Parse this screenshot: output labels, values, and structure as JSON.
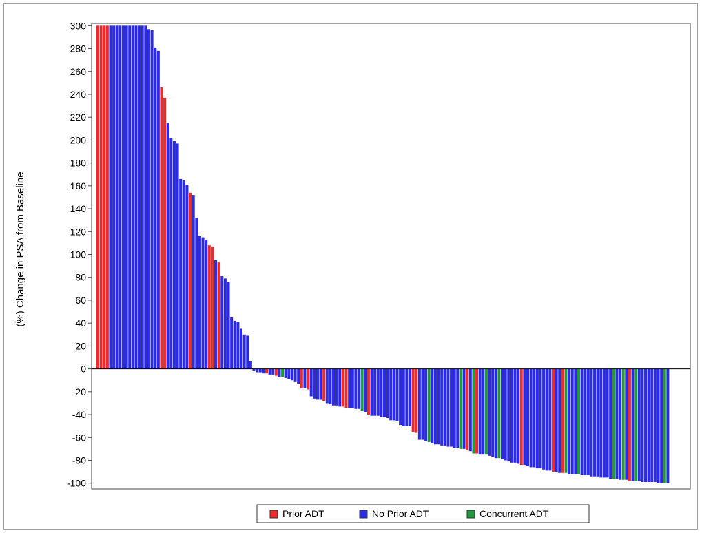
{
  "chart_data": {
    "type": "bar",
    "ylabel": "(%) Change in PSA from Baseline",
    "ylim": [
      -105,
      302
    ],
    "yticks": [
      -100,
      -80,
      -60,
      -40,
      -20,
      0,
      20,
      40,
      60,
      80,
      100,
      120,
      140,
      160,
      180,
      200,
      220,
      240,
      260,
      280,
      300
    ],
    "grid": false,
    "legend_position": "bottom-center",
    "series_colors": {
      "Prior ADT": "#ee2a2a",
      "No Prior ADT": "#2a2ae8",
      "Concurrent ADT": "#1f9a3a"
    },
    "legend": [
      {
        "name": "Prior ADT",
        "color": "#ee2a2a"
      },
      {
        "name": "No Prior ADT",
        "color": "#2a2ae8"
      },
      {
        "name": "Concurrent ADT",
        "color": "#1f9a3a"
      }
    ],
    "bars": [
      {
        "v": 300,
        "g": "Prior ADT"
      },
      {
        "v": 300,
        "g": "Prior ADT"
      },
      {
        "v": 300,
        "g": "Prior ADT"
      },
      {
        "v": 300,
        "g": "Prior ADT"
      },
      {
        "v": 300,
        "g": "No Prior ADT"
      },
      {
        "v": 300,
        "g": "No Prior ADT"
      },
      {
        "v": 300,
        "g": "No Prior ADT"
      },
      {
        "v": 300,
        "g": "No Prior ADT"
      },
      {
        "v": 300,
        "g": "No Prior ADT"
      },
      {
        "v": 300,
        "g": "No Prior ADT"
      },
      {
        "v": 300,
        "g": "No Prior ADT"
      },
      {
        "v": 300,
        "g": "No Prior ADT"
      },
      {
        "v": 300,
        "g": "No Prior ADT"
      },
      {
        "v": 300,
        "g": "No Prior ADT"
      },
      {
        "v": 300,
        "g": "No Prior ADT"
      },
      {
        "v": 300,
        "g": "No Prior ADT"
      },
      {
        "v": 297,
        "g": "No Prior ADT"
      },
      {
        "v": 296,
        "g": "No Prior ADT"
      },
      {
        "v": 281,
        "g": "No Prior ADT"
      },
      {
        "v": 278,
        "g": "No Prior ADT"
      },
      {
        "v": 246,
        "g": "Prior ADT"
      },
      {
        "v": 237,
        "g": "Prior ADT"
      },
      {
        "v": 215,
        "g": "No Prior ADT"
      },
      {
        "v": 202,
        "g": "No Prior ADT"
      },
      {
        "v": 199,
        "g": "No Prior ADT"
      },
      {
        "v": 197,
        "g": "No Prior ADT"
      },
      {
        "v": 166,
        "g": "No Prior ADT"
      },
      {
        "v": 165,
        "g": "No Prior ADT"
      },
      {
        "v": 161,
        "g": "No Prior ADT"
      },
      {
        "v": 154,
        "g": "Prior ADT"
      },
      {
        "v": 152,
        "g": "No Prior ADT"
      },
      {
        "v": 132,
        "g": "No Prior ADT"
      },
      {
        "v": 116,
        "g": "No Prior ADT"
      },
      {
        "v": 115,
        "g": "No Prior ADT"
      },
      {
        "v": 113,
        "g": "No Prior ADT"
      },
      {
        "v": 108,
        "g": "Prior ADT"
      },
      {
        "v": 107,
        "g": "Prior ADT"
      },
      {
        "v": 95,
        "g": "No Prior ADT"
      },
      {
        "v": 93,
        "g": "Prior ADT"
      },
      {
        "v": 81,
        "g": "No Prior ADT"
      },
      {
        "v": 79,
        "g": "No Prior ADT"
      },
      {
        "v": 76,
        "g": "No Prior ADT"
      },
      {
        "v": 45,
        "g": "No Prior ADT"
      },
      {
        "v": 42,
        "g": "No Prior ADT"
      },
      {
        "v": 41,
        "g": "No Prior ADT"
      },
      {
        "v": 35,
        "g": "No Prior ADT"
      },
      {
        "v": 30,
        "g": "No Prior ADT"
      },
      {
        "v": 29,
        "g": "No Prior ADT"
      },
      {
        "v": 7,
        "g": "No Prior ADT"
      },
      {
        "v": -2,
        "g": "No Prior ADT"
      },
      {
        "v": -3,
        "g": "No Prior ADT"
      },
      {
        "v": -3,
        "g": "No Prior ADT"
      },
      {
        "v": -4,
        "g": "No Prior ADT"
      },
      {
        "v": -4,
        "g": "Prior ADT"
      },
      {
        "v": -5,
        "g": "No Prior ADT"
      },
      {
        "v": -5,
        "g": "No Prior ADT"
      },
      {
        "v": -6,
        "g": "Prior ADT"
      },
      {
        "v": -7,
        "g": "No Prior ADT"
      },
      {
        "v": -7,
        "g": "Concurrent ADT"
      },
      {
        "v": -8,
        "g": "No Prior ADT"
      },
      {
        "v": -9,
        "g": "No Prior ADT"
      },
      {
        "v": -10,
        "g": "No Prior ADT"
      },
      {
        "v": -11,
        "g": "No Prior ADT"
      },
      {
        "v": -13,
        "g": "No Prior ADT"
      },
      {
        "v": -17,
        "g": "Prior ADT"
      },
      {
        "v": -17,
        "g": "No Prior ADT"
      },
      {
        "v": -18,
        "g": "Prior ADT"
      },
      {
        "v": -24,
        "g": "No Prior ADT"
      },
      {
        "v": -26,
        "g": "No Prior ADT"
      },
      {
        "v": -27,
        "g": "No Prior ADT"
      },
      {
        "v": -27,
        "g": "No Prior ADT"
      },
      {
        "v": -28,
        "g": "Prior ADT"
      },
      {
        "v": -30,
        "g": "No Prior ADT"
      },
      {
        "v": -31,
        "g": "No Prior ADT"
      },
      {
        "v": -32,
        "g": "No Prior ADT"
      },
      {
        "v": -32,
        "g": "No Prior ADT"
      },
      {
        "v": -33,
        "g": "No Prior ADT"
      },
      {
        "v": -33,
        "g": "Prior ADT"
      },
      {
        "v": -34,
        "g": "Prior ADT"
      },
      {
        "v": -34,
        "g": "No Prior ADT"
      },
      {
        "v": -34,
        "g": "No Prior ADT"
      },
      {
        "v": -35,
        "g": "No Prior ADT"
      },
      {
        "v": -35,
        "g": "No Prior ADT"
      },
      {
        "v": -37,
        "g": "Concurrent ADT"
      },
      {
        "v": -38,
        "g": "No Prior ADT"
      },
      {
        "v": -40,
        "g": "Prior ADT"
      },
      {
        "v": -41,
        "g": "No Prior ADT"
      },
      {
        "v": -41,
        "g": "No Prior ADT"
      },
      {
        "v": -41,
        "g": "No Prior ADT"
      },
      {
        "v": -42,
        "g": "No Prior ADT"
      },
      {
        "v": -42,
        "g": "No Prior ADT"
      },
      {
        "v": -43,
        "g": "No Prior ADT"
      },
      {
        "v": -45,
        "g": "No Prior ADT"
      },
      {
        "v": -45,
        "g": "No Prior ADT"
      },
      {
        "v": -46,
        "g": "No Prior ADT"
      },
      {
        "v": -49,
        "g": "No Prior ADT"
      },
      {
        "v": -50,
        "g": "No Prior ADT"
      },
      {
        "v": -50,
        "g": "No Prior ADT"
      },
      {
        "v": -50,
        "g": "No Prior ADT"
      },
      {
        "v": -55,
        "g": "Prior ADT"
      },
      {
        "v": -56,
        "g": "Prior ADT"
      },
      {
        "v": -62,
        "g": "No Prior ADT"
      },
      {
        "v": -62,
        "g": "No Prior ADT"
      },
      {
        "v": -63,
        "g": "No Prior ADT"
      },
      {
        "v": -64,
        "g": "Concurrent ADT"
      },
      {
        "v": -65,
        "g": "No Prior ADT"
      },
      {
        "v": -66,
        "g": "No Prior ADT"
      },
      {
        "v": -66,
        "g": "No Prior ADT"
      },
      {
        "v": -67,
        "g": "No Prior ADT"
      },
      {
        "v": -67,
        "g": "No Prior ADT"
      },
      {
        "v": -68,
        "g": "No Prior ADT"
      },
      {
        "v": -68,
        "g": "No Prior ADT"
      },
      {
        "v": -69,
        "g": "No Prior ADT"
      },
      {
        "v": -69,
        "g": "No Prior ADT"
      },
      {
        "v": -70,
        "g": "Concurrent ADT"
      },
      {
        "v": -70,
        "g": "No Prior ADT"
      },
      {
        "v": -71,
        "g": "Prior ADT"
      },
      {
        "v": -72,
        "g": "No Prior ADT"
      },
      {
        "v": -74,
        "g": "Concurrent ADT"
      },
      {
        "v": -74,
        "g": "Prior ADT"
      },
      {
        "v": -75,
        "g": "No Prior ADT"
      },
      {
        "v": -75,
        "g": "No Prior ADT"
      },
      {
        "v": -75,
        "g": "Concurrent ADT"
      },
      {
        "v": -76,
        "g": "No Prior ADT"
      },
      {
        "v": -77,
        "g": "No Prior ADT"
      },
      {
        "v": -78,
        "g": "No Prior ADT"
      },
      {
        "v": -78,
        "g": "Concurrent ADT"
      },
      {
        "v": -79,
        "g": "No Prior ADT"
      },
      {
        "v": -80,
        "g": "No Prior ADT"
      },
      {
        "v": -81,
        "g": "No Prior ADT"
      },
      {
        "v": -82,
        "g": "No Prior ADT"
      },
      {
        "v": -82,
        "g": "No Prior ADT"
      },
      {
        "v": -83,
        "g": "No Prior ADT"
      },
      {
        "v": -84,
        "g": "Prior ADT"
      },
      {
        "v": -84,
        "g": "No Prior ADT"
      },
      {
        "v": -85,
        "g": "No Prior ADT"
      },
      {
        "v": -86,
        "g": "No Prior ADT"
      },
      {
        "v": -86,
        "g": "No Prior ADT"
      },
      {
        "v": -87,
        "g": "No Prior ADT"
      },
      {
        "v": -87,
        "g": "No Prior ADT"
      },
      {
        "v": -88,
        "g": "No Prior ADT"
      },
      {
        "v": -89,
        "g": "No Prior ADT"
      },
      {
        "v": -89,
        "g": "No Prior ADT"
      },
      {
        "v": -90,
        "g": "Prior ADT"
      },
      {
        "v": -90,
        "g": "No Prior ADT"
      },
      {
        "v": -91,
        "g": "No Prior ADT"
      },
      {
        "v": -91,
        "g": "Prior ADT"
      },
      {
        "v": -91,
        "g": "Concurrent ADT"
      },
      {
        "v": -92,
        "g": "No Prior ADT"
      },
      {
        "v": -92,
        "g": "No Prior ADT"
      },
      {
        "v": -92,
        "g": "No Prior ADT"
      },
      {
        "v": -92,
        "g": "Concurrent ADT"
      },
      {
        "v": -93,
        "g": "No Prior ADT"
      },
      {
        "v": -93,
        "g": "No Prior ADT"
      },
      {
        "v": -93,
        "g": "No Prior ADT"
      },
      {
        "v": -94,
        "g": "No Prior ADT"
      },
      {
        "v": -94,
        "g": "No Prior ADT"
      },
      {
        "v": -94,
        "g": "No Prior ADT"
      },
      {
        "v": -95,
        "g": "No Prior ADT"
      },
      {
        "v": -95,
        "g": "No Prior ADT"
      },
      {
        "v": -95,
        "g": "No Prior ADT"
      },
      {
        "v": -96,
        "g": "No Prior ADT"
      },
      {
        "v": -96,
        "g": "Concurrent ADT"
      },
      {
        "v": -96,
        "g": "No Prior ADT"
      },
      {
        "v": -97,
        "g": "No Prior ADT"
      },
      {
        "v": -97,
        "g": "Concurrent ADT"
      },
      {
        "v": -97,
        "g": "No Prior ADT"
      },
      {
        "v": -98,
        "g": "Prior ADT"
      },
      {
        "v": -98,
        "g": "No Prior ADT"
      },
      {
        "v": -98,
        "g": "Concurrent ADT"
      },
      {
        "v": -98,
        "g": "No Prior ADT"
      },
      {
        "v": -99,
        "g": "No Prior ADT"
      },
      {
        "v": -99,
        "g": "No Prior ADT"
      },
      {
        "v": -99,
        "g": "No Prior ADT"
      },
      {
        "v": -99,
        "g": "No Prior ADT"
      },
      {
        "v": -99,
        "g": "No Prior ADT"
      },
      {
        "v": -100,
        "g": "No Prior ADT"
      },
      {
        "v": -100,
        "g": "No Prior ADT"
      },
      {
        "v": -100,
        "g": "Concurrent ADT"
      },
      {
        "v": -100,
        "g": "No Prior ADT"
      }
    ]
  }
}
